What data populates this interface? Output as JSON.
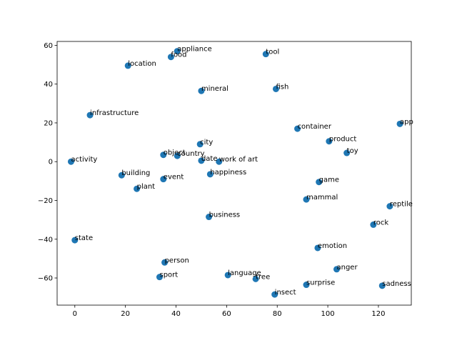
{
  "chart_data": {
    "type": "scatter",
    "title": "",
    "xlabel": "",
    "ylabel": "",
    "xlim": [
      -7,
      133
    ],
    "ylim": [
      -74,
      62
    ],
    "xticks": [
      0,
      20,
      40,
      60,
      80,
      100,
      120
    ],
    "yticks": [
      -60,
      -40,
      -20,
      0,
      20,
      40,
      60
    ],
    "grid": false,
    "marker_color": "#1f77b4",
    "points": [
      {
        "label": "appliance",
        "x": 40.5,
        "y": 57.0
      },
      {
        "label": "food",
        "x": 38.0,
        "y": 54.0
      },
      {
        "label": "location",
        "x": 21.0,
        "y": 49.5
      },
      {
        "label": "tool",
        "x": 75.5,
        "y": 55.5
      },
      {
        "label": "mineral",
        "x": 50.0,
        "y": 36.5
      },
      {
        "label": "fish",
        "x": 79.5,
        "y": 37.5
      },
      {
        "label": "infrastructure",
        "x": 6.0,
        "y": 24.0
      },
      {
        "label": "container",
        "x": 88.0,
        "y": 17.0
      },
      {
        "label": "app",
        "x": 128.5,
        "y": 19.5
      },
      {
        "label": "product",
        "x": 100.5,
        "y": 10.5
      },
      {
        "label": "toy",
        "x": 107.5,
        "y": 4.5
      },
      {
        "label": "city",
        "x": 49.5,
        "y": 9.0
      },
      {
        "label": "object",
        "x": 35.0,
        "y": 3.5
      },
      {
        "label": "country",
        "x": 40.5,
        "y": 3.0
      },
      {
        "label": "date",
        "x": 50.0,
        "y": 0.5
      },
      {
        "label": "work of art",
        "x": 57.0,
        "y": 0.0
      },
      {
        "label": "activity",
        "x": -1.5,
        "y": 0.0
      },
      {
        "label": "building",
        "x": 18.5,
        "y": -7.0
      },
      {
        "label": "event",
        "x": 35.0,
        "y": -9.0
      },
      {
        "label": "happiness",
        "x": 53.5,
        "y": -6.5
      },
      {
        "label": "plant",
        "x": 24.5,
        "y": -14.0
      },
      {
        "label": "game",
        "x": 96.5,
        "y": -10.5
      },
      {
        "label": "mammal",
        "x": 91.5,
        "y": -19.5
      },
      {
        "label": "reptile",
        "x": 124.5,
        "y": -23.0
      },
      {
        "label": "business",
        "x": 53.0,
        "y": -28.5
      },
      {
        "label": "rock",
        "x": 118.0,
        "y": -32.5
      },
      {
        "label": "state",
        "x": 0.0,
        "y": -40.5
      },
      {
        "label": "emotion",
        "x": 96.0,
        "y": -44.5
      },
      {
        "label": "person",
        "x": 35.5,
        "y": -52.0
      },
      {
        "label": "anger",
        "x": 103.5,
        "y": -55.5
      },
      {
        "label": "language",
        "x": 60.5,
        "y": -58.5
      },
      {
        "label": "tree",
        "x": 71.5,
        "y": -60.5
      },
      {
        "label": "sport",
        "x": 33.5,
        "y": -59.5
      },
      {
        "label": "surprise",
        "x": 91.5,
        "y": -63.5
      },
      {
        "label": "sadness",
        "x": 121.5,
        "y": -64.0
      },
      {
        "label": "insect",
        "x": 79.0,
        "y": -68.5
      }
    ]
  }
}
